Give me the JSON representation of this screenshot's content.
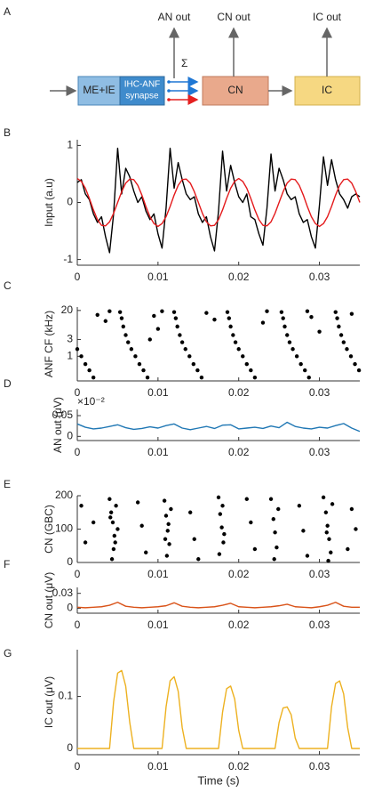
{
  "diagram": {
    "panel_label": "A",
    "input_box": "ME+IE",
    "synapse_box": [
      "IHC-ANF",
      "synapse"
    ],
    "cn_box": "CN",
    "ic_box": "IC",
    "an_out": "AN out",
    "cn_out": "CN out",
    "ic_out": "IC out",
    "sum": "Σ"
  },
  "chart_data": [
    {
      "type": "line",
      "panel_label": "B",
      "ylabel": "Input (a.u)",
      "xlim": [
        0,
        0.035
      ],
      "xticks": [
        0,
        0.01,
        0.02,
        0.03
      ],
      "ylim": [
        -1.1,
        1.1
      ],
      "yticks": [
        -1,
        0,
        1
      ],
      "x": [
        0,
        0.0005,
        0.001,
        0.0015,
        0.002,
        0.0025,
        0.003,
        0.0035,
        0.004,
        0.0045,
        0.005,
        0.0055,
        0.006,
        0.0065,
        0.007,
        0.0075,
        0.008,
        0.0085,
        0.009,
        0.0095,
        0.01,
        0.0105,
        0.011,
        0.0115,
        0.012,
        0.0125,
        0.013,
        0.0135,
        0.014,
        0.0145,
        0.015,
        0.0155,
        0.016,
        0.0165,
        0.017,
        0.0175,
        0.018,
        0.0185,
        0.019,
        0.0195,
        0.02,
        0.0205,
        0.021,
        0.0215,
        0.022,
        0.0225,
        0.023,
        0.0235,
        0.024,
        0.0245,
        0.025,
        0.0255,
        0.026,
        0.0265,
        0.027,
        0.0275,
        0.028,
        0.0285,
        0.029,
        0.0295,
        0.03,
        0.0305,
        0.031,
        0.0315,
        0.032,
        0.0325,
        0.033,
        0.0335,
        0.034,
        0.0345,
        0.035
      ],
      "series": [
        {
          "color": "#000000",
          "values": [
            0.35,
            0.4,
            0.15,
            0.05,
            -0.2,
            -0.35,
            -0.25,
            -0.6,
            -0.88,
            -0.2,
            0.95,
            0.15,
            0.6,
            0.45,
            0.2,
            0,
            0.1,
            -0.15,
            -0.3,
            -0.2,
            -0.55,
            -0.8,
            -0.1,
            0.95,
            0.25,
            0.7,
            0.4,
            0.15,
            0.05,
            0.1,
            -0.2,
            -0.35,
            -0.25,
            -0.6,
            -0.85,
            -0.15,
            0.9,
            0.2,
            0.65,
            0.35,
            0.1,
            0,
            0.15,
            -0.25,
            -0.3,
            -0.55,
            -0.75,
            -0.1,
            0.85,
            0.2,
            0.6,
            0.4,
            0.15,
            0.05,
            0.1,
            -0.2,
            -0.35,
            -0.3,
            -0.6,
            -0.8,
            -0.05,
            0.8,
            0.3,
            0.75,
            0.4,
            0.15,
            0.05,
            -0.1,
            0.1,
            0.15,
            0.1
          ]
        },
        {
          "color": "#e41a1c",
          "values": [
            0.42,
            0.37,
            0.25,
            0.07,
            -0.13,
            -0.3,
            -0.4,
            -0.41,
            -0.34,
            -0.19,
            0,
            0.19,
            0.34,
            0.41,
            0.4,
            0.3,
            0.13,
            -0.07,
            -0.25,
            -0.37,
            -0.42,
            -0.37,
            -0.25,
            -0.07,
            0.13,
            0.3,
            0.4,
            0.41,
            0.34,
            0.19,
            0,
            -0.19,
            -0.34,
            -0.41,
            -0.4,
            -0.3,
            -0.13,
            0.07,
            0.25,
            0.37,
            0.42,
            0.37,
            0.25,
            0.07,
            -0.13,
            -0.3,
            -0.4,
            -0.41,
            -0.34,
            -0.19,
            0,
            0.19,
            0.34,
            0.41,
            0.4,
            0.3,
            0.13,
            -0.07,
            -0.25,
            -0.37,
            -0.42,
            -0.37,
            -0.25,
            -0.07,
            0.13,
            0.3,
            0.4,
            0.41,
            0.34,
            0.19,
            0
          ]
        }
      ]
    },
    {
      "type": "scatter",
      "panel_label": "C",
      "ylabel": "ANF CF (kHz)",
      "log_y": true,
      "color": "#000000",
      "xlim": [
        0,
        0.035
      ],
      "xticks": [
        0,
        0.01,
        0.02,
        0.03
      ],
      "ylim": [
        0.2,
        25
      ],
      "yticks": [
        1,
        3,
        20
      ],
      "x": [
        0.002,
        0.0015,
        0.001,
        0.0005,
        0,
        0.0087,
        0.0082,
        0.0077,
        0.0072,
        0.0067,
        0.0063,
        0.006,
        0.0057,
        0.0055,
        0.0053,
        0.0154,
        0.0149,
        0.0144,
        0.0139,
        0.0134,
        0.013,
        0.0127,
        0.0124,
        0.0122,
        0.012,
        0.022,
        0.0215,
        0.021,
        0.0205,
        0.02,
        0.0196,
        0.0193,
        0.019,
        0.0188,
        0.0186,
        0.0287,
        0.0282,
        0.0277,
        0.0272,
        0.0267,
        0.0263,
        0.026,
        0.0257,
        0.0255,
        0.0253,
        0.0349,
        0.0344,
        0.0339,
        0.0334,
        0.033,
        0.0327,
        0.0324,
        0.0322,
        0.032,
        0.0025,
        0.0035,
        0.0095,
        0.01,
        0.016,
        0.023,
        0.0235,
        0.029,
        0.03,
        0.034,
        0.004,
        0.017,
        0.0105,
        0.0285,
        0.009
      ],
      "y": [
        0.25,
        0.4,
        0.6,
        1,
        1.6,
        0.25,
        0.4,
        0.6,
        1,
        1.6,
        2.5,
        4,
        7,
        12,
        18,
        0.25,
        0.4,
        0.6,
        1,
        1.6,
        2.5,
        4,
        7,
        12,
        18,
        0.25,
        0.4,
        0.6,
        1,
        1.6,
        2.5,
        4,
        7,
        12,
        18,
        0.25,
        0.4,
        0.6,
        1,
        1.6,
        2.5,
        4,
        7,
        12,
        18,
        0.4,
        0.6,
        1,
        1.6,
        2.5,
        4,
        7,
        12,
        18,
        15,
        10,
        14,
        6,
        17,
        9,
        19,
        13,
        5,
        16,
        19,
        11,
        19,
        19,
        3
      ]
    },
    {
      "type": "line",
      "panel_label": "D",
      "ylabel": "AN out (μV)",
      "y_multiplier": "×10⁻²",
      "xlim": [
        0,
        0.035
      ],
      "xticks": [
        0,
        0.01,
        0.02,
        0.03
      ],
      "ylim": [
        -0.01,
        0.065
      ],
      "yticks": [
        0,
        0.05
      ],
      "x": [
        0,
        0.001,
        0.002,
        0.003,
        0.004,
        0.005,
        0.006,
        0.007,
        0.008,
        0.009,
        0.01,
        0.011,
        0.012,
        0.013,
        0.014,
        0.015,
        0.016,
        0.017,
        0.018,
        0.019,
        0.02,
        0.021,
        0.022,
        0.023,
        0.024,
        0.025,
        0.026,
        0.027,
        0.028,
        0.029,
        0.03,
        0.031,
        0.032,
        0.033,
        0.034,
        0.035
      ],
      "series": [
        {
          "color": "#1f77b4",
          "values": [
            0.03,
            0.022,
            0.018,
            0.02,
            0.024,
            0.028,
            0.021,
            0.017,
            0.019,
            0.023,
            0.02,
            0.026,
            0.03,
            0.02,
            0.016,
            0.02,
            0.024,
            0.019,
            0.027,
            0.028,
            0.018,
            0.02,
            0.022,
            0.019,
            0.025,
            0.021,
            0.034,
            0.024,
            0.02,
            0.018,
            0.022,
            0.02,
            0.026,
            0.031,
            0.02,
            0.012
          ]
        }
      ]
    },
    {
      "type": "scatter",
      "panel_label": "E",
      "ylabel": "CN (GBC)",
      "color": "#000000",
      "xlim": [
        0,
        0.035
      ],
      "xticks": [
        0,
        0.01,
        0.02,
        0.03
      ],
      "ylim": [
        0,
        200
      ],
      "yticks": [
        0,
        100,
        200
      ],
      "x": [
        0.004,
        0.0042,
        0.0044,
        0.0046,
        0.0045,
        0.0048,
        0.005,
        0.0043,
        0.0047,
        0.0041,
        0.0108,
        0.011,
        0.0112,
        0.0114,
        0.0111,
        0.0116,
        0.0113,
        0.0109,
        0.0175,
        0.0177,
        0.0179,
        0.0181,
        0.0176,
        0.018,
        0.0182,
        0.024,
        0.0243,
        0.0245,
        0.0247,
        0.0244,
        0.0249,
        0.0305,
        0.0308,
        0.031,
        0.0312,
        0.0314,
        0.0311,
        0.0316,
        0.0309,
        0.0005,
        0.001,
        0.002,
        0.0075,
        0.008,
        0.0085,
        0.014,
        0.0145,
        0.015,
        0.021,
        0.0215,
        0.022,
        0.0275,
        0.028,
        0.0285,
        0.034,
        0.0345,
        0.0335
      ],
      "y": [
        190,
        150,
        120,
        80,
        40,
        170,
        100,
        10,
        60,
        135,
        185,
        140,
        95,
        55,
        20,
        160,
        115,
        70,
        195,
        145,
        105,
        60,
        25,
        170,
        85,
        190,
        130,
        90,
        45,
        10,
        160,
        195,
        150,
        110,
        70,
        30,
        5,
        175,
        90,
        170,
        60,
        120,
        180,
        110,
        30,
        150,
        70,
        10,
        190,
        120,
        40,
        170,
        95,
        20,
        160,
        100,
        40
      ]
    },
    {
      "type": "line",
      "panel_label": "F",
      "ylabel": "CN out (μV)",
      "xlim": [
        0,
        0.035
      ],
      "xticks": [
        0,
        0.01,
        0.02,
        0.03
      ],
      "ylim": [
        -0.01,
        0.042
      ],
      "yticks": [
        0,
        0.03
      ],
      "x": [
        0,
        0.001,
        0.002,
        0.003,
        0.004,
        0.005,
        0.006,
        0.007,
        0.008,
        0.009,
        0.01,
        0.011,
        0.012,
        0.013,
        0.014,
        0.015,
        0.016,
        0.017,
        0.018,
        0.019,
        0.02,
        0.021,
        0.022,
        0.023,
        0.024,
        0.025,
        0.026,
        0.027,
        0.028,
        0.029,
        0.03,
        0.031,
        0.032,
        0.033,
        0.034,
        0.035
      ],
      "series": [
        {
          "color": "#d95319",
          "values": [
            0.002,
            0.001,
            0.002,
            0.003,
            0.006,
            0.012,
            0.004,
            0.002,
            0.001,
            0.002,
            0.003,
            0.005,
            0.011,
            0.004,
            0.002,
            0.001,
            0.002,
            0.003,
            0.006,
            0.01,
            0.003,
            0.002,
            0.001,
            0.002,
            0.003,
            0.005,
            0.008,
            0.003,
            0.002,
            0.001,
            0.003,
            0.006,
            0.012,
            0.004,
            0.002,
            0.002
          ]
        }
      ]
    },
    {
      "type": "line",
      "panel_label": "G",
      "ylabel": "IC out (μV)",
      "xlabel": "Time (s)",
      "xlim": [
        0,
        0.035
      ],
      "xticks": [
        0,
        0.01,
        0.02,
        0.03
      ],
      "ylim": [
        -0.012,
        0.19
      ],
      "yticks": [
        0,
        0.1
      ],
      "x": [
        0,
        0.0005,
        0.001,
        0.0015,
        0.002,
        0.0025,
        0.003,
        0.0035,
        0.004,
        0.0045,
        0.005,
        0.0055,
        0.006,
        0.0065,
        0.007,
        0.0075,
        0.008,
        0.0085,
        0.009,
        0.0095,
        0.01,
        0.0105,
        0.011,
        0.0115,
        0.012,
        0.0125,
        0.013,
        0.0135,
        0.014,
        0.0145,
        0.015,
        0.0155,
        0.016,
        0.0165,
        0.017,
        0.0175,
        0.018,
        0.0185,
        0.019,
        0.0195,
        0.02,
        0.0205,
        0.021,
        0.0215,
        0.022,
        0.0225,
        0.023,
        0.0235,
        0.024,
        0.0245,
        0.025,
        0.0255,
        0.026,
        0.0265,
        0.027,
        0.0275,
        0.028,
        0.0285,
        0.029,
        0.0295,
        0.03,
        0.0305,
        0.031,
        0.0315,
        0.032,
        0.0325,
        0.033,
        0.0335,
        0.034,
        0.0345,
        0.035
      ],
      "series": [
        {
          "color": "#edb120",
          "values": [
            0,
            0,
            0,
            0,
            0,
            0,
            0,
            0,
            0,
            0.09,
            0.145,
            0.15,
            0.12,
            0.05,
            0,
            0,
            0,
            0,
            0,
            0,
            0,
            0,
            0.08,
            0.13,
            0.138,
            0.11,
            0.04,
            0,
            0,
            0,
            0,
            0,
            0,
            0,
            0,
            0,
            0.07,
            0.115,
            0.12,
            0.095,
            0.035,
            0,
            0,
            0,
            0,
            0,
            0,
            0,
            0,
            0,
            0.05,
            0.078,
            0.08,
            0.065,
            0.02,
            0,
            0,
            0,
            0,
            0,
            0,
            0,
            0,
            0.08,
            0.125,
            0.13,
            0.105,
            0.04,
            0,
            0,
            0
          ]
        }
      ]
    }
  ]
}
